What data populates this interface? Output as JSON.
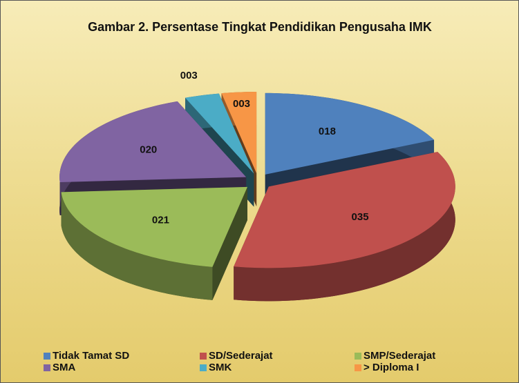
{
  "chart_data": {
    "type": "pie3d",
    "title": "Gambar 2. Persentase Tingkat Pendidikan Pengusaha IMK",
    "categories": [
      "Tidak Tamat SD",
      "SD/Sederajat",
      "SMP/Sederajat",
      "SMA",
      "SMK",
      "> Diploma I"
    ],
    "values": [
      18,
      35,
      21,
      20,
      3,
      3
    ],
    "value_labels": [
      "018",
      "035",
      "021",
      "020",
      "003",
      "003"
    ],
    "colors": [
      "#4f81bd",
      "#c0504d",
      "#9bbb59",
      "#8064a2",
      "#4bacc6",
      "#f79646"
    ]
  }
}
